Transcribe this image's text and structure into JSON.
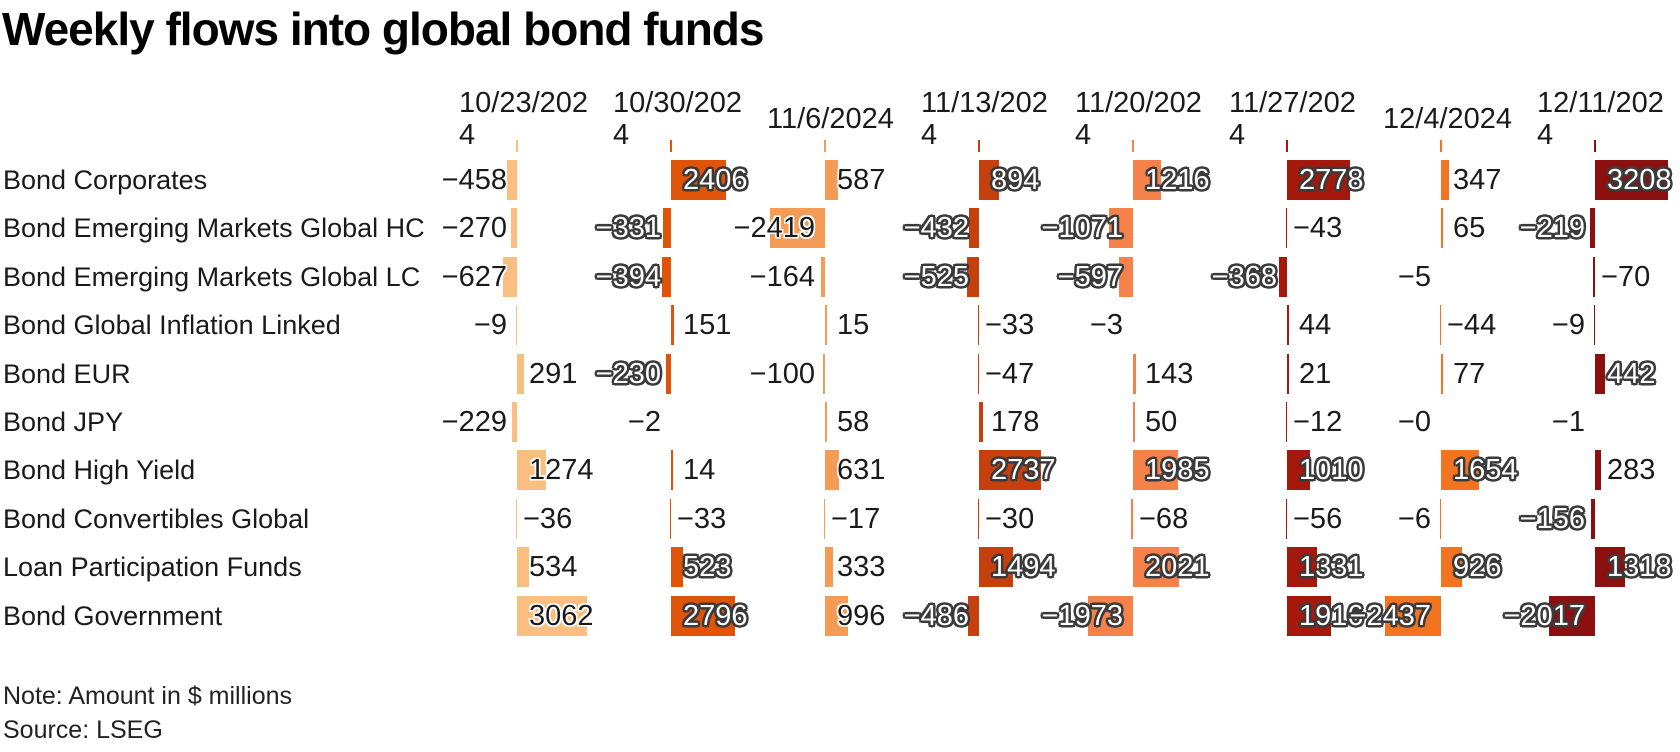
{
  "title": "Weekly flows into global bond funds",
  "note": "Note: Amount in $ millions",
  "source": "Source: LSEG",
  "chart_data": {
    "type": "table",
    "title": "Weekly flows into global bond funds",
    "unit": "$ millions",
    "columns": [
      "10/23/2024",
      "10/30/2024",
      "11/6/2024",
      "11/13/2024",
      "11/20/2024",
      "11/27/2024",
      "12/4/2024",
      "12/11/2024"
    ],
    "column_colors": [
      "#F9BE80",
      "#E0540A",
      "#F49C55",
      "#C6400D",
      "#F4824A",
      "#A5180C",
      "#F37420",
      "#8C1010"
    ],
    "rows": [
      {
        "name": "Bond Corporates",
        "values": [
          -458,
          2406,
          587,
          894,
          1216,
          2778,
          347,
          3208
        ],
        "labels": [
          "−458",
          "2406",
          "587",
          "894",
          "1216",
          "2778",
          "347",
          "3208"
        ],
        "sides": [
          "L",
          "R",
          "R",
          "R",
          "R",
          "R",
          "R",
          "R"
        ],
        "styles": [
          "plain",
          "outline",
          "plain",
          "outline",
          "outline",
          "outline",
          "plain",
          "outline"
        ]
      },
      {
        "name": "Bond Emerging Markets Global HC",
        "values": [
          -270,
          -331,
          -2419,
          -432,
          -1071,
          -43,
          65,
          -219
        ],
        "labels": [
          "−270",
          "−331",
          "−2419",
          "−432",
          "−1071",
          "−43",
          "65",
          "−219"
        ],
        "sides": [
          "L",
          "L",
          "L",
          "L",
          "L",
          "R",
          "R",
          "L"
        ],
        "styles": [
          "plain",
          "outline",
          "plain",
          "outline",
          "outline",
          "plain",
          "plain",
          "outline"
        ]
      },
      {
        "name": "Bond Emerging Markets Global LC",
        "values": [
          -627,
          -394,
          -164,
          -525,
          -597,
          -368,
          -5,
          -70
        ],
        "labels": [
          "−627",
          "−394",
          "−164",
          "−525",
          "−597",
          "−368",
          "−5",
          "−70"
        ],
        "sides": [
          "L",
          "L",
          "L",
          "L",
          "L",
          "L",
          "L",
          "R"
        ],
        "styles": [
          "plain",
          "outline",
          "plain",
          "outline",
          "outline",
          "outline",
          "plain",
          "plain"
        ]
      },
      {
        "name": "Bond Global Inflation Linked",
        "values": [
          -9,
          151,
          15,
          -33,
          -3,
          44,
          -44,
          -9
        ],
        "labels": [
          "−9",
          "151",
          "15",
          "−33",
          "−3",
          "44",
          "−44",
          "−9"
        ],
        "sides": [
          "L",
          "R",
          "R",
          "R",
          "L",
          "R",
          "R",
          "L"
        ],
        "styles": [
          "plain",
          "plain",
          "plain",
          "plain",
          "plain",
          "plain",
          "plain",
          "plain"
        ]
      },
      {
        "name": "Bond EUR",
        "values": [
          291,
          -230,
          -100,
          -47,
          143,
          21,
          77,
          442
        ],
        "labels": [
          "291",
          "−230",
          "−100",
          "−47",
          "143",
          "21",
          "77",
          "442"
        ],
        "sides": [
          "R",
          "L",
          "L",
          "R",
          "R",
          "R",
          "R",
          "R"
        ],
        "styles": [
          "plain",
          "outline",
          "plain",
          "plain",
          "plain",
          "plain",
          "plain",
          "outline"
        ]
      },
      {
        "name": "Bond JPY",
        "values": [
          -229,
          -2,
          58,
          178,
          50,
          -12,
          0,
          -1
        ],
        "labels": [
          "−229",
          "−2",
          "58",
          "178",
          "50",
          "−12",
          "−0",
          "−1"
        ],
        "sides": [
          "L",
          "L",
          "R",
          "R",
          "R",
          "R",
          "L",
          "L"
        ],
        "styles": [
          "plain",
          "plain",
          "plain",
          "plain",
          "plain",
          "plain",
          "plain",
          "plain"
        ]
      },
      {
        "name": "Bond High Yield",
        "values": [
          1274,
          14,
          631,
          2737,
          1985,
          1010,
          1654,
          283
        ],
        "labels": [
          "1274",
          "14",
          "631",
          "2737",
          "1985",
          "1010",
          "1654",
          "283"
        ],
        "sides": [
          "R",
          "R",
          "R",
          "R",
          "R",
          "R",
          "R",
          "R"
        ],
        "styles": [
          "plain",
          "plain",
          "plain",
          "outline",
          "outline",
          "outline",
          "outline",
          "plain"
        ]
      },
      {
        "name": "Bond Convertibles Global",
        "values": [
          -36,
          -33,
          -17,
          -30,
          -68,
          -56,
          -6,
          -156
        ],
        "labels": [
          "−36",
          "−33",
          "−17",
          "−30",
          "−68",
          "−56",
          "−6",
          "−156"
        ],
        "sides": [
          "R",
          "R",
          "R",
          "R",
          "R",
          "R",
          "L",
          "L"
        ],
        "styles": [
          "plain",
          "plain",
          "plain",
          "plain",
          "plain",
          "plain",
          "plain",
          "outline"
        ]
      },
      {
        "name": "Loan Participation Funds",
        "values": [
          534,
          523,
          333,
          1494,
          2021,
          1331,
          926,
          1318
        ],
        "labels": [
          "534",
          "523",
          "333",
          "1494",
          "2021",
          "1331",
          "926",
          "1318"
        ],
        "sides": [
          "R",
          "R",
          "R",
          "R",
          "R",
          "R",
          "R",
          "R"
        ],
        "styles": [
          "plain",
          "outline",
          "plain",
          "outline",
          "outline",
          "outline",
          "outline",
          "outline"
        ]
      },
      {
        "name": "Bond Government",
        "values": [
          3062,
          2796,
          996,
          -486,
          -1973,
          1916,
          -2437,
          -2017
        ],
        "labels": [
          "3062",
          "2796",
          "996",
          "−486",
          "−1973",
          "1916",
          "−2437",
          "−2017"
        ],
        "sides": [
          "R",
          "R",
          "R",
          "L",
          "L",
          "R",
          "L",
          "L"
        ],
        "styles": [
          "plain",
          "outline",
          "plain",
          "outline",
          "outline",
          "outline",
          "outline",
          "outline"
        ]
      }
    ]
  }
}
